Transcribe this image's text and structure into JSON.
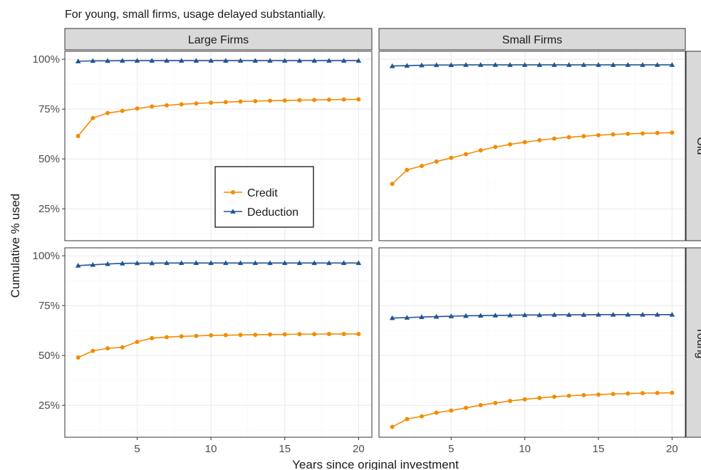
{
  "chart_data": {
    "type": "line",
    "title": "For young, small firms, usage delayed substantially.",
    "xlabel": "Years since original investment",
    "ylabel": "Cumulative % used",
    "xlim": [
      0.1,
      20.9
    ],
    "ylim": [
      0.09,
      1.04
    ],
    "x_ticks": [
      5,
      10,
      15,
      20
    ],
    "x_tick_labels": [
      "5",
      "10",
      "15",
      "20"
    ],
    "y_ticks": [
      0.25,
      0.5,
      0.75,
      1.0
    ],
    "y_tick_labels": [
      "25%",
      "50%",
      "75%",
      "100%"
    ],
    "grid": true,
    "legend": {
      "placement": "inside-top-left-panel-lower-right",
      "entries": [
        {
          "name": "Credit",
          "color": "#F28C00",
          "marker": "circle"
        },
        {
          "name": "Deduction",
          "color": "#1F5591",
          "marker": "triangle"
        }
      ]
    },
    "col_facets": [
      "Large Firms",
      "Small Firms"
    ],
    "row_facets": [
      "Old",
      "Young"
    ],
    "x": [
      1,
      2,
      3,
      4,
      5,
      6,
      7,
      8,
      9,
      10,
      11,
      12,
      13,
      14,
      15,
      16,
      17,
      18,
      19,
      20
    ],
    "panels": [
      {
        "col": "Large Firms",
        "row": "Old",
        "series": [
          {
            "name": "Credit",
            "values": [
              0.615,
              0.705,
              0.73,
              0.741,
              0.753,
              0.763,
              0.769,
              0.774,
              0.778,
              0.782,
              0.785,
              0.788,
              0.79,
              0.792,
              0.793,
              0.795,
              0.796,
              0.797,
              0.798,
              0.799
            ]
          },
          {
            "name": "Deduction",
            "values": [
              0.99,
              0.992,
              0.992,
              0.993,
              0.993,
              0.993,
              0.993,
              0.993,
              0.993,
              0.993,
              0.993,
              0.993,
              0.993,
              0.993,
              0.993,
              0.993,
              0.993,
              0.993,
              0.993,
              0.993
            ]
          }
        ]
      },
      {
        "col": "Small Firms",
        "row": "Old",
        "series": [
          {
            "name": "Credit",
            "values": [
              0.375,
              0.445,
              0.465,
              0.487,
              0.505,
              0.524,
              0.543,
              0.56,
              0.573,
              0.584,
              0.594,
              0.602,
              0.609,
              0.614,
              0.619,
              0.623,
              0.626,
              0.628,
              0.63,
              0.632
            ]
          },
          {
            "name": "Deduction",
            "values": [
              0.966,
              0.968,
              0.97,
              0.971,
              0.971,
              0.972,
              0.972,
              0.972,
              0.972,
              0.972,
              0.972,
              0.972,
              0.972,
              0.972,
              0.972,
              0.972,
              0.972,
              0.972,
              0.972,
              0.972
            ]
          }
        ]
      },
      {
        "col": "Large Firms",
        "row": "Young",
        "series": [
          {
            "name": "Credit",
            "values": [
              0.49,
              0.523,
              0.536,
              0.541,
              0.568,
              0.587,
              0.592,
              0.596,
              0.598,
              0.601,
              0.602,
              0.603,
              0.604,
              0.605,
              0.606,
              0.607,
              0.607,
              0.608,
              0.608,
              0.608
            ]
          },
          {
            "name": "Deduction",
            "values": [
              0.951,
              0.955,
              0.959,
              0.962,
              0.963,
              0.963,
              0.964,
              0.964,
              0.964,
              0.964,
              0.964,
              0.964,
              0.964,
              0.964,
              0.964,
              0.964,
              0.964,
              0.964,
              0.964,
              0.964
            ]
          }
        ]
      },
      {
        "col": "Small Firms",
        "row": "Young",
        "series": [
          {
            "name": "Credit",
            "values": [
              0.142,
              0.181,
              0.195,
              0.213,
              0.224,
              0.237,
              0.251,
              0.262,
              0.272,
              0.28,
              0.287,
              0.293,
              0.298,
              0.301,
              0.304,
              0.307,
              0.309,
              0.311,
              0.312,
              0.313
            ]
          },
          {
            "name": "Deduction",
            "values": [
              0.688,
              0.69,
              0.693,
              0.695,
              0.697,
              0.699,
              0.7,
              0.701,
              0.702,
              0.703,
              0.703,
              0.704,
              0.704,
              0.704,
              0.705,
              0.705,
              0.705,
              0.705,
              0.705,
              0.705
            ]
          }
        ]
      }
    ]
  }
}
